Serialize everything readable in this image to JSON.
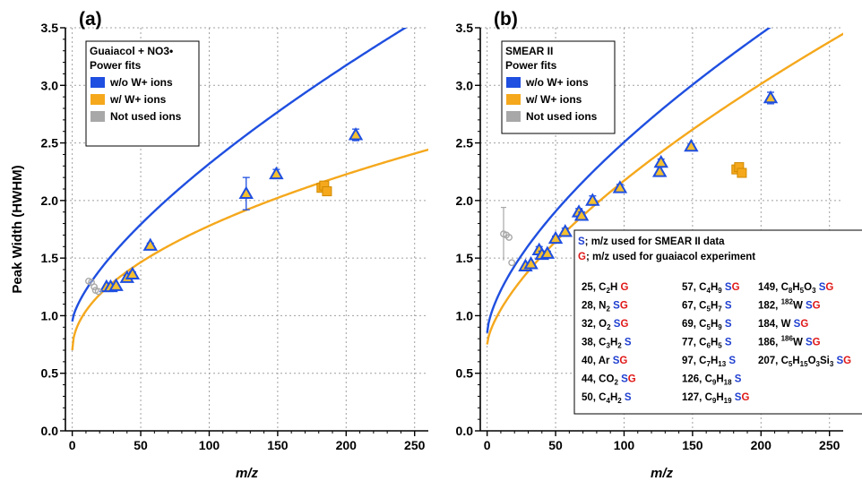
{
  "chart_data": [
    {
      "type": "scatter",
      "panel_label": "(a)",
      "xlabel": "m/z",
      "ylabel": "Peak Width (HWHM)",
      "xlim": [
        -5,
        260
      ],
      "ylim": [
        0,
        3.5
      ],
      "x_ticks": [
        "0",
        "50",
        "100",
        "150",
        "200",
        "250"
      ],
      "y_ticks": [
        "0.0",
        "0.5",
        "1.0",
        "1.5",
        "2.0",
        "2.5",
        "3.0",
        "3.5"
      ],
      "grid": true,
      "legend": {
        "title_lines": [
          "Guaiacol + NO3•",
          "Power fits"
        ],
        "entries": [
          "w/o W+ ions",
          "w/ W+ ions",
          "Not used ions"
        ]
      },
      "series": [
        {
          "kind": "fit",
          "color": "#1f4fe0",
          "a": 0.95,
          "b": 0.0545,
          "c": 0.7
        },
        {
          "kind": "fit",
          "color": "#f5a81c",
          "a": 0.7,
          "b": 0.108,
          "c": 0.5
        },
        {
          "kind": "triangles",
          "color": "#1f4fe0",
          "points": [
            [
              25,
              1.25,
              0
            ],
            [
              28,
              1.25,
              0
            ],
            [
              32,
              1.26,
              0
            ],
            [
              40,
              1.33,
              0.02
            ],
            [
              44,
              1.36,
              0.02
            ],
            [
              57,
              1.61,
              0.02
            ],
            [
              127,
              2.06,
              0.14
            ],
            [
              149,
              2.23,
              0.04
            ],
            [
              207,
              2.57,
              0.05
            ]
          ]
        },
        {
          "kind": "squares",
          "color": "#f5a81c",
          "points": [
            [
              182,
              2.11
            ],
            [
              184,
              2.13
            ],
            [
              186,
              2.08
            ]
          ]
        },
        {
          "kind": "circles",
          "color": "#a8a8a8",
          "points": [
            [
              12,
              1.3
            ],
            [
              14,
              1.29
            ],
            [
              16,
              1.25
            ],
            [
              17,
              1.22
            ],
            [
              19,
              1.21
            ]
          ]
        }
      ]
    },
    {
      "type": "scatter",
      "panel_label": "(b)",
      "xlabel": "m/z",
      "ylabel": "",
      "xlim": [
        -5,
        260
      ],
      "ylim": [
        0,
        3.5
      ],
      "x_ticks": [
        "0",
        "50",
        "100",
        "150",
        "200",
        "250"
      ],
      "y_ticks": [
        "0.0",
        "0.5",
        "1.0",
        "1.5",
        "2.0",
        "2.5",
        "3.0",
        "3.5"
      ],
      "grid": true,
      "legend": {
        "title_lines": [
          "SMEAR II",
          "Power fits"
        ],
        "entries": [
          "w/o W+ ions",
          "w/ W+ ions",
          "Not used ions"
        ]
      },
      "series": [
        {
          "kind": "fit",
          "color": "#1f4fe0",
          "a": 0.85,
          "b": 0.083,
          "c": 0.65
        },
        {
          "kind": "fit",
          "color": "#f5a81c",
          "a": 0.75,
          "b": 0.065,
          "c": 0.67
        },
        {
          "kind": "triangles",
          "color": "#1f4fe0",
          "points": [
            [
              28,
              1.43,
              0
            ],
            [
              32,
              1.45,
              0
            ],
            [
              38,
              1.57,
              0.03
            ],
            [
              40,
              1.53,
              0.03
            ],
            [
              44,
              1.54,
              0.02
            ],
            [
              50,
              1.67,
              0.02
            ],
            [
              57,
              1.73,
              0.03
            ],
            [
              67,
              1.9,
              0.03
            ],
            [
              69,
              1.87,
              0.03
            ],
            [
              77,
              2.0,
              0.04
            ],
            [
              97,
              2.11,
              0.03
            ],
            [
              126,
              2.25,
              0.04
            ],
            [
              127,
              2.33,
              0.03
            ],
            [
              149,
              2.47,
              0.02
            ],
            [
              207,
              2.89,
              0.05
            ]
          ]
        },
        {
          "kind": "squares",
          "color": "#f5a81c",
          "points": [
            [
              182,
              2.27
            ],
            [
              184,
              2.29
            ],
            [
              186,
              2.24
            ]
          ]
        },
        {
          "kind": "circles",
          "color": "#a8a8a8",
          "points": [
            [
              12,
              1.71,
              0.23
            ],
            [
              14,
              1.7,
              0
            ],
            [
              16,
              1.68,
              0
            ],
            [
              18,
              1.46,
              0
            ]
          ]
        }
      ]
    }
  ],
  "table": {
    "header_lines": [
      [
        {
          "t": "S",
          "c": "#1f3fd0"
        },
        {
          "t": "; m/z used for SMEAR II data",
          "c": "#000000"
        }
      ],
      [
        {
          "t": "G",
          "c": "#e01818"
        },
        {
          "t": "; m/z used for guaiacol experiment",
          "c": "#000000"
        }
      ]
    ],
    "rows": [
      [
        [
          {
            "t": "25, C"
          },
          {
            "t": "2",
            "sub": true
          },
          {
            "t": "H  "
          },
          {
            "t": "G",
            "c": "#e01818"
          }
        ],
        [
          {
            "t": "57, C"
          },
          {
            "t": "4",
            "sub": true
          },
          {
            "t": "H"
          },
          {
            "t": "9",
            "sub": true
          },
          {
            "t": "  "
          },
          {
            "t": "S",
            "c": "#1f3fd0"
          },
          {
            "t": "G",
            "c": "#e01818"
          }
        ],
        [
          {
            "t": "149, C"
          },
          {
            "t": "8",
            "sub": true
          },
          {
            "t": "H"
          },
          {
            "t": "5",
            "sub": true
          },
          {
            "t": "O"
          },
          {
            "t": "3",
            "sub": true
          },
          {
            "t": "  "
          },
          {
            "t": "S",
            "c": "#1f3fd0"
          },
          {
            "t": "G",
            "c": "#e01818"
          }
        ]
      ],
      [
        [
          {
            "t": "28, N"
          },
          {
            "t": "2",
            "sub": true
          },
          {
            "t": "  "
          },
          {
            "t": "S",
            "c": "#1f3fd0"
          },
          {
            "t": "G",
            "c": "#e01818"
          }
        ],
        [
          {
            "t": "67, C"
          },
          {
            "t": "5",
            "sub": true
          },
          {
            "t": "H"
          },
          {
            "t": "7",
            "sub": true
          },
          {
            "t": "  "
          },
          {
            "t": "S",
            "c": "#1f3fd0"
          }
        ],
        [
          {
            "t": "182, "
          },
          {
            "t": "182",
            "sup": true
          },
          {
            "t": "W  "
          },
          {
            "t": "S",
            "c": "#1f3fd0"
          },
          {
            "t": "G",
            "c": "#e01818"
          }
        ]
      ],
      [
        [
          {
            "t": "32, O"
          },
          {
            "t": "2",
            "sub": true
          },
          {
            "t": "  "
          },
          {
            "t": "S",
            "c": "#1f3fd0"
          },
          {
            "t": "G",
            "c": "#e01818"
          }
        ],
        [
          {
            "t": "69, C"
          },
          {
            "t": "5",
            "sub": true
          },
          {
            "t": "H"
          },
          {
            "t": "9",
            "sub": true
          },
          {
            "t": "  "
          },
          {
            "t": "S",
            "c": "#1f3fd0"
          }
        ],
        [
          {
            "t": "184, W  "
          },
          {
            "t": "S",
            "c": "#1f3fd0"
          },
          {
            "t": "G",
            "c": "#e01818"
          }
        ]
      ],
      [
        [
          {
            "t": "38, C"
          },
          {
            "t": "3",
            "sub": true
          },
          {
            "t": "H"
          },
          {
            "t": "2",
            "sub": true
          },
          {
            "t": "  "
          },
          {
            "t": "S",
            "c": "#1f3fd0"
          }
        ],
        [
          {
            "t": "77, C"
          },
          {
            "t": "6",
            "sub": true
          },
          {
            "t": "H"
          },
          {
            "t": "5",
            "sub": true
          },
          {
            "t": "  "
          },
          {
            "t": "S",
            "c": "#1f3fd0"
          }
        ],
        [
          {
            "t": "186, "
          },
          {
            "t": "186",
            "sup": true
          },
          {
            "t": "W  "
          },
          {
            "t": "S",
            "c": "#1f3fd0"
          },
          {
            "t": "G",
            "c": "#e01818"
          }
        ]
      ],
      [
        [
          {
            "t": "40, Ar  "
          },
          {
            "t": "S",
            "c": "#1f3fd0"
          },
          {
            "t": "G",
            "c": "#e01818"
          }
        ],
        [
          {
            "t": "97, C"
          },
          {
            "t": "7",
            "sub": true
          },
          {
            "t": "H"
          },
          {
            "t": "13",
            "sub": true
          },
          {
            "t": "  "
          },
          {
            "t": "S",
            "c": "#1f3fd0"
          }
        ],
        [
          {
            "t": "207, C"
          },
          {
            "t": "5",
            "sub": true
          },
          {
            "t": "H"
          },
          {
            "t": "15",
            "sub": true
          },
          {
            "t": "O"
          },
          {
            "t": "3",
            "sub": true
          },
          {
            "t": "Si"
          },
          {
            "t": "3",
            "sub": true
          },
          {
            "t": "  "
          },
          {
            "t": "S",
            "c": "#1f3fd0"
          },
          {
            "t": "G",
            "c": "#e01818"
          }
        ]
      ],
      [
        [
          {
            "t": "44, CO"
          },
          {
            "t": "2",
            "sub": true
          },
          {
            "t": "  "
          },
          {
            "t": "S",
            "c": "#1f3fd0"
          },
          {
            "t": "G",
            "c": "#e01818"
          }
        ],
        [
          {
            "t": "126, C"
          },
          {
            "t": "9",
            "sub": true
          },
          {
            "t": "H"
          },
          {
            "t": "18",
            "sub": true
          },
          {
            "t": "  "
          },
          {
            "t": "S",
            "c": "#1f3fd0"
          }
        ],
        []
      ],
      [
        [
          {
            "t": "50, C"
          },
          {
            "t": "4",
            "sub": true
          },
          {
            "t": "H"
          },
          {
            "t": "2",
            "sub": true
          },
          {
            "t": "  "
          },
          {
            "t": "S",
            "c": "#1f3fd0"
          }
        ],
        [
          {
            "t": "127, C"
          },
          {
            "t": "9",
            "sub": true
          },
          {
            "t": "H"
          },
          {
            "t": "19",
            "sub": true
          },
          {
            "t": "  "
          },
          {
            "t": "S",
            "c": "#1f3fd0"
          },
          {
            "t": "G",
            "c": "#e01818"
          }
        ],
        []
      ]
    ]
  }
}
